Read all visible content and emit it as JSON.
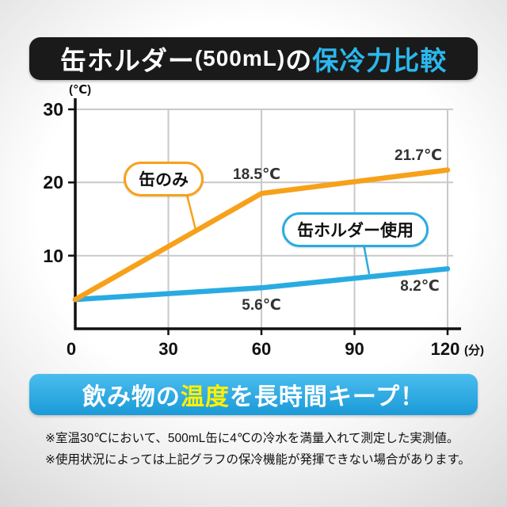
{
  "title": {
    "text_main": "缶ホルダー",
    "text_size": "(500mL)",
    "text_particle": "の",
    "text_highlight": "保冷力比較",
    "highlight_color": "#2BB8EE"
  },
  "chart_data": {
    "type": "line",
    "x": [
      0,
      60,
      120
    ],
    "xlim": [
      0,
      120
    ],
    "ylim": [
      0,
      30
    ],
    "x_ticks": [
      "30",
      "60",
      "90",
      "120"
    ],
    "y_ticks": [
      "30",
      "20",
      "10"
    ],
    "origin_label": "0",
    "x_unit_label": "(分)",
    "y_unit_label": "(℃)",
    "grid": true,
    "series": [
      {
        "name": "缶のみ",
        "color": "#F7A11A",
        "values": [
          4,
          18.5,
          21.7
        ],
        "point_labels": [
          "",
          "18.5℃",
          "21.7℃"
        ]
      },
      {
        "name": "缶ホルダー使用",
        "color": "#29ABE2",
        "values": [
          4,
          5.6,
          8.2
        ],
        "point_labels": [
          "",
          "5.6℃",
          "8.2℃"
        ]
      }
    ]
  },
  "banner": {
    "pre": "飲み物の",
    "highlight": "温度",
    "post": "を長時間キープ！",
    "highlight_color": "#FFF100",
    "bg_color": "#29ABE2"
  },
  "footnotes": [
    "※室温30℃において、500mL缶に4℃の冷水を満量入れて測定した実測値。",
    "※使用状況によっては上記グラフの保冷機能が発揮できない場合があります。"
  ]
}
